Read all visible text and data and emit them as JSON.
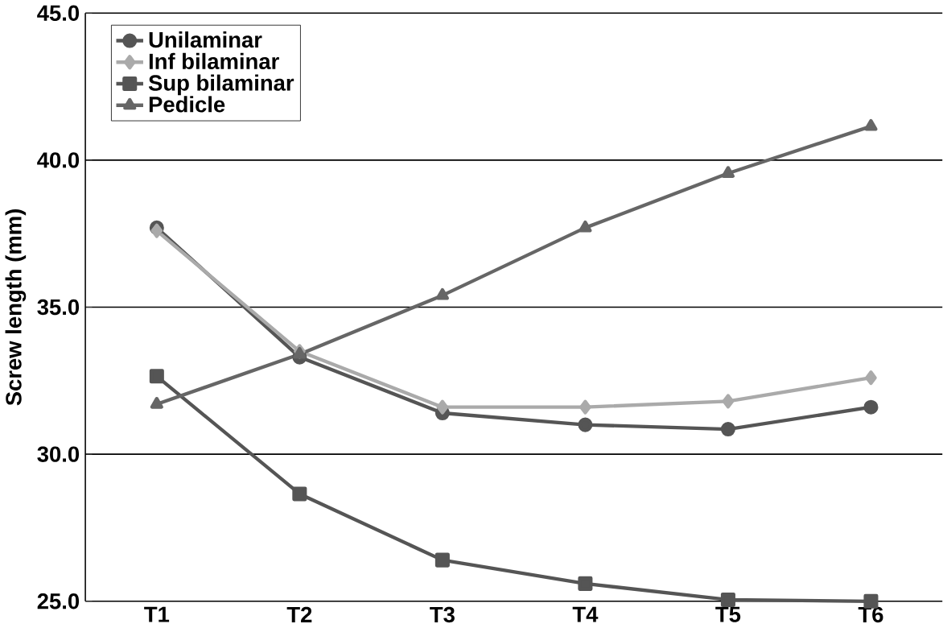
{
  "chart_data": {
    "type": "line",
    "ylabel": "Screw length (mm)",
    "categories": [
      "T1",
      "T2",
      "T3",
      "T4",
      "T5",
      "T6"
    ],
    "series": [
      {
        "name": "Unilaminar",
        "color": "#555555",
        "marker": "circle",
        "values": [
          37.7,
          33.3,
          31.4,
          31.0,
          30.85,
          31.6
        ]
      },
      {
        "name": "Inf bilaminar",
        "color": "#aaaaaa",
        "marker": "diamond",
        "values": [
          37.6,
          33.5,
          31.6,
          31.6,
          31.8,
          32.6
        ]
      },
      {
        "name": "Sup bilaminar",
        "color": "#555555",
        "marker": "square",
        "values": [
          32.65,
          28.65,
          26.4,
          25.6,
          25.05,
          25.0
        ]
      },
      {
        "name": "Pedicle",
        "color": "#666666",
        "marker": "triangle",
        "values": [
          31.7,
          33.4,
          35.4,
          37.7,
          39.55,
          41.15
        ]
      }
    ],
    "ylim": [
      25,
      45
    ],
    "yticks": [
      {
        "value": 25,
        "label": "25.0"
      },
      {
        "value": 30,
        "label": "30.0"
      },
      {
        "value": 35,
        "label": "35.0"
      },
      {
        "value": 40,
        "label": "40.0"
      },
      {
        "value": 45,
        "label": "45.0"
      }
    ],
    "grid": "y",
    "legend": "top left",
    "line_style": "solid"
  }
}
